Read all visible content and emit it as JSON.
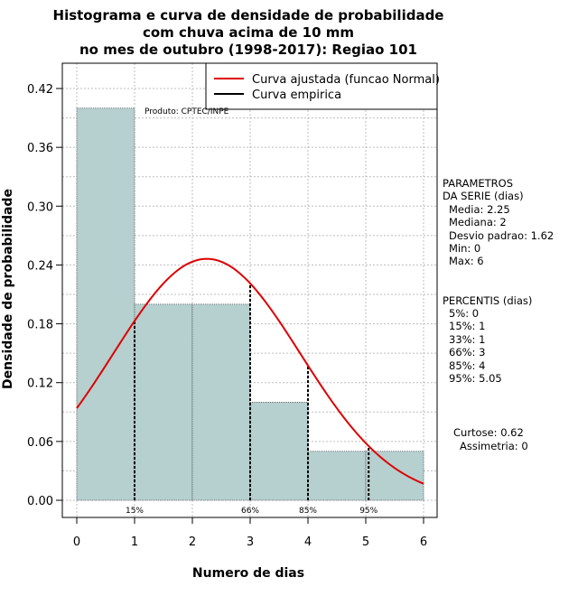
{
  "chart_data": {
    "type": "bar",
    "title_lines": [
      "Histograma e curva de densidade de probabilidade",
      "com chuva acima de 10 mm",
      "no mes de outubro (1998-2017): Regiao 101"
    ],
    "xlabel": "Numero de dias",
    "ylabel": "Densidade de probabilidade",
    "xlim": [
      0,
      6
    ],
    "ylim": [
      0,
      0.42
    ],
    "x_ticks": [
      "0",
      "1",
      "2",
      "3",
      "4",
      "5",
      "6"
    ],
    "y_ticks": [
      "0.00",
      "0.06",
      "0.12",
      "0.18",
      "0.24",
      "0.30",
      "0.36",
      "0.42"
    ],
    "grid": true,
    "bins": [
      {
        "from": 0,
        "to": 1,
        "density": 0.4
      },
      {
        "from": 1,
        "to": 2,
        "density": 0.2
      },
      {
        "from": 2,
        "to": 3,
        "density": 0.2
      },
      {
        "from": 3,
        "to": 4,
        "density": 0.1
      },
      {
        "from": 4,
        "to": 5,
        "density": 0.05
      },
      {
        "from": 5,
        "to": 6,
        "density": 0.05
      }
    ],
    "normal_fit": {
      "mean": 2.25,
      "sd": 1.62,
      "color": "#dd0000"
    },
    "bar_color": "#b6cfcf",
    "legend": {
      "position": "top-right",
      "entries": [
        {
          "label": "Curva ajustada (funcao Normal)",
          "color": "#dd0000"
        },
        {
          "label": "Curva empirica",
          "color": "#000000"
        }
      ]
    },
    "credit": "Produto: CPTEC/INPE",
    "percentile_markers": [
      {
        "label": "15%",
        "x": 1
      },
      {
        "label": "66%",
        "x": 3
      },
      {
        "label": "85%",
        "x": 4
      },
      {
        "label": "95%",
        "x": 5.05
      }
    ]
  },
  "stats": {
    "params_title": [
      "PARAMETROS",
      "DA SERIE (dias)"
    ],
    "params": [
      "Media: 2.25",
      "Mediana: 2",
      "Desvio padrao: 1.62",
      "Min: 0",
      "Max: 6"
    ],
    "percentis_title": "PERCENTIS (dias)",
    "percentis": [
      "5%: 0",
      "15%: 1",
      "33%: 1",
      "66%: 3",
      "85%: 4",
      "95%: 5.05"
    ],
    "shape": [
      "Curtose: 0.62",
      "Assimetria: 0"
    ]
  }
}
